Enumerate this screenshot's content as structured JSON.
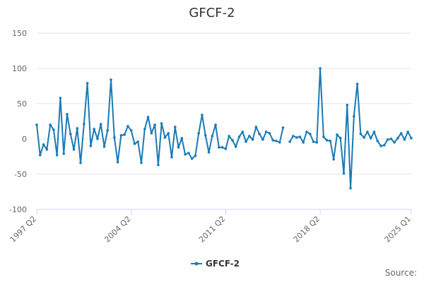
{
  "chart_data": {
    "type": "line",
    "title": "GFCF-2",
    "xlabel": "",
    "ylabel": "",
    "ylim": [
      -100,
      150
    ],
    "yticks": [
      -100,
      -50,
      0,
      50,
      100,
      150
    ],
    "x_tick_labels": [
      "1997 Q2",
      "2004 Q2",
      "2011 Q2",
      "2018 Q2",
      "2025 Q1"
    ],
    "grid": "horizontal",
    "legend_position": "bottom-center",
    "series": [
      {
        "name": "GFCF-2",
        "color": "#1a7ab5",
        "x": [
          "1997 Q2",
          "1997 Q3",
          "1997 Q4",
          "1998 Q1",
          "1998 Q2",
          "1998 Q3",
          "1998 Q4",
          "1999 Q1",
          "1999 Q2",
          "1999 Q3",
          "1999 Q4",
          "2000 Q1",
          "2000 Q2",
          "2000 Q3",
          "2000 Q4",
          "2001 Q1",
          "2001 Q2",
          "2001 Q3",
          "2001 Q4",
          "2002 Q1",
          "2002 Q2",
          "2002 Q3",
          "2002 Q4",
          "2003 Q1",
          "2003 Q2",
          "2003 Q3",
          "2003 Q4",
          "2004 Q1",
          "2004 Q2",
          "2004 Q3",
          "2004 Q4",
          "2005 Q1",
          "2005 Q2",
          "2005 Q3",
          "2005 Q4",
          "2006 Q1",
          "2006 Q2",
          "2006 Q3",
          "2006 Q4",
          "2007 Q1",
          "2007 Q2",
          "2007 Q3",
          "2007 Q4",
          "2008 Q1",
          "2008 Q2",
          "2008 Q3",
          "2008 Q4",
          "2009 Q1",
          "2009 Q2",
          "2009 Q3",
          "2009 Q4",
          "2010 Q1",
          "2010 Q2",
          "2010 Q3",
          "2010 Q4",
          "2011 Q1",
          "2011 Q2",
          "2011 Q3",
          "2011 Q4",
          "2012 Q1",
          "2012 Q2",
          "2012 Q3",
          "2012 Q4",
          "2013 Q1",
          "2013 Q2",
          "2013 Q3",
          "2013 Q4",
          "2014 Q1",
          "2014 Q2",
          "2014 Q3",
          "2014 Q4",
          "2015 Q1",
          "2015 Q2",
          "2015 Q3",
          "2015 Q4",
          "2016 Q1",
          "2016 Q2",
          "2016 Q3",
          "2016 Q4",
          "2017 Q1",
          "2017 Q2",
          "2017 Q3",
          "2017 Q4",
          "2018 Q1",
          "2018 Q2",
          "2018 Q3",
          "2018 Q4",
          "2019 Q1",
          "2019 Q2",
          "2019 Q3",
          "2019 Q4",
          "2020 Q1",
          "2020 Q2",
          "2020 Q3",
          "2020 Q4",
          "2021 Q1",
          "2021 Q2",
          "2021 Q3",
          "2021 Q4",
          "2022 Q1",
          "2022 Q2",
          "2022 Q3",
          "2022 Q4",
          "2023 Q1",
          "2023 Q2",
          "2023 Q3",
          "2023 Q4",
          "2024 Q1",
          "2024 Q2",
          "2024 Q3",
          "2024 Q4",
          "2025 Q1"
        ],
        "values": [
          20,
          -23,
          -8,
          -15,
          20,
          13,
          -23,
          58,
          -21,
          35,
          7,
          -15,
          15,
          -34,
          21,
          79,
          -10,
          14,
          0,
          21,
          -11,
          12,
          84,
          2,
          -33,
          5,
          6,
          18,
          12,
          -7,
          -4,
          -34,
          14,
          31,
          8,
          20,
          -37,
          22,
          2,
          8,
          -26,
          17,
          -12,
          1,
          -22,
          -20,
          -28,
          -24,
          8,
          34,
          5,
          -19,
          4,
          20,
          -12,
          -12,
          -14,
          4,
          -2,
          -11,
          3,
          10,
          -4,
          4,
          -1,
          17,
          7,
          -1,
          10,
          8,
          -2,
          -3,
          -5,
          16,
          null,
          -4,
          4,
          2,
          3,
          -5,
          10,
          7,
          -4,
          -5,
          100,
          3,
          -2,
          -3,
          -29,
          6,
          1,
          -49,
          48,
          -70,
          32,
          78,
          7,
          2,
          10,
          1,
          10,
          -3,
          -10,
          -9,
          -1,
          0,
          -5,
          1,
          8,
          -1,
          10,
          1
        ]
      }
    ]
  },
  "legend": {
    "label": "GFCF-2"
  },
  "footer": {
    "source_label": "Source:"
  }
}
